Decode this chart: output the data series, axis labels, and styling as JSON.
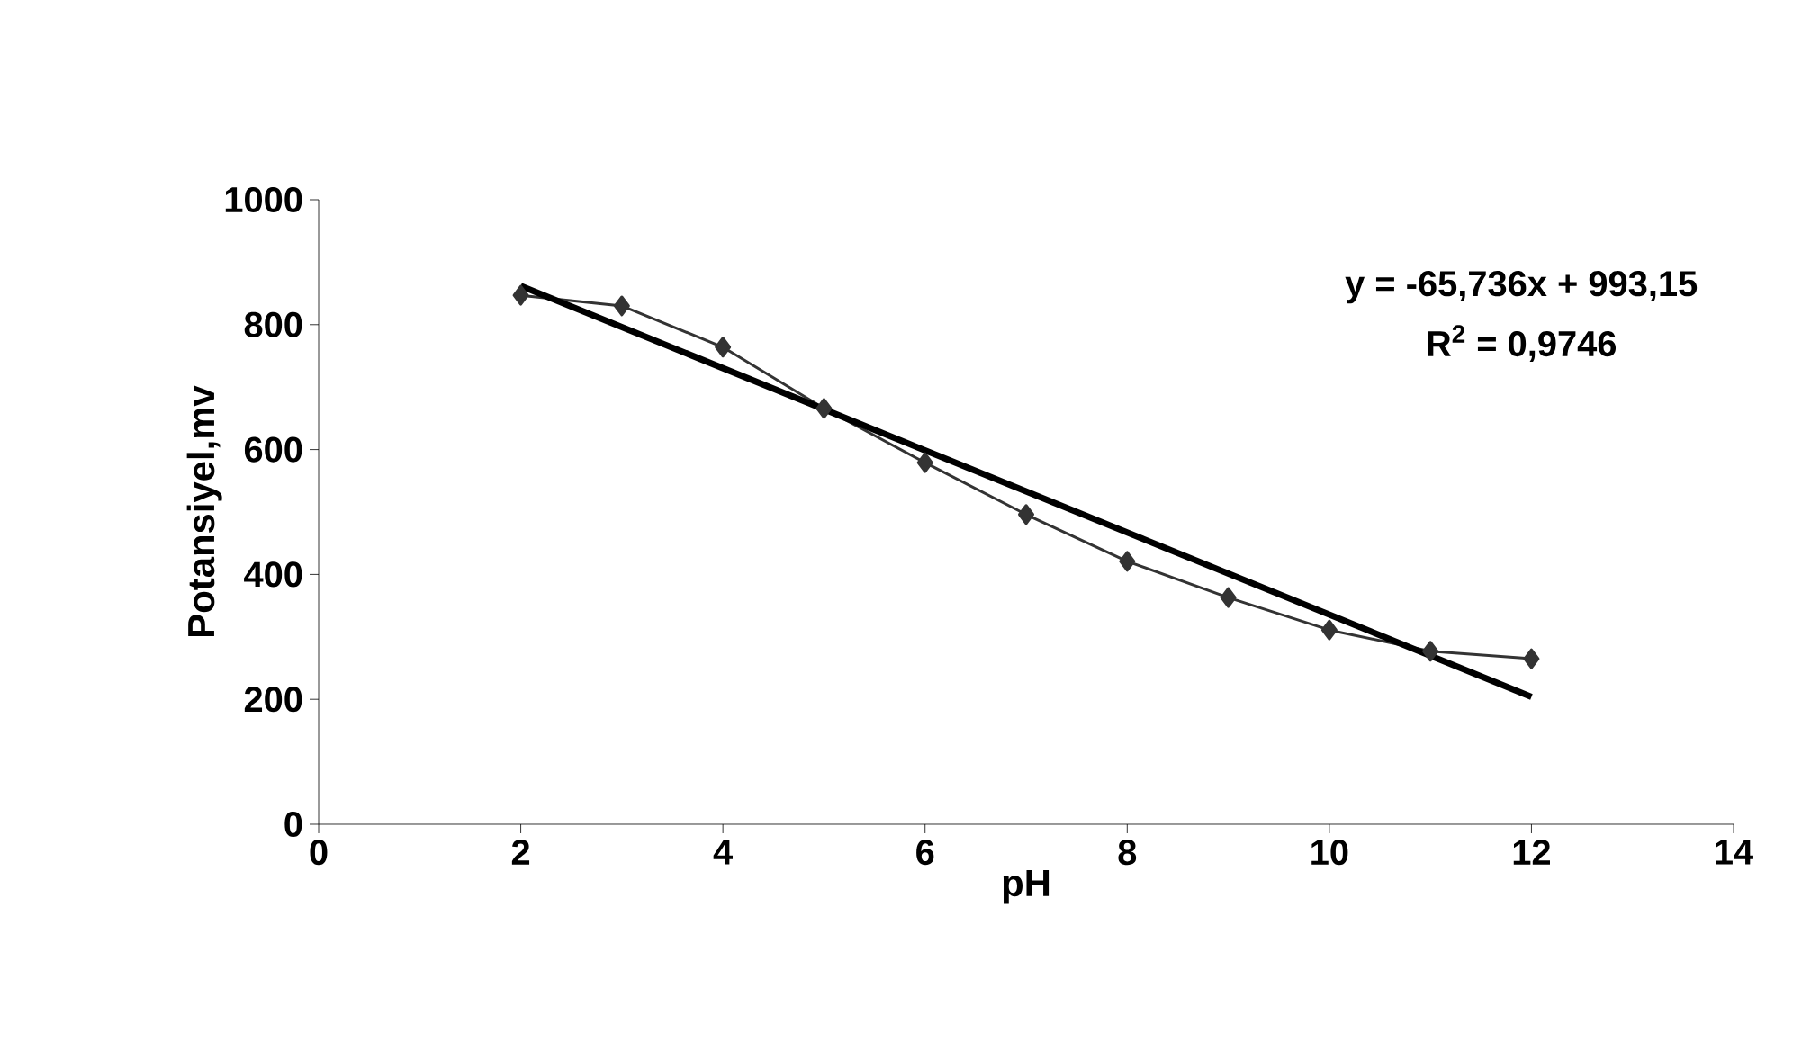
{
  "chart_data": {
    "type": "line",
    "xlabel": "pH",
    "ylabel": "Potansiyel,mv",
    "series": [
      {
        "color": "#333333",
        "marker": "diamond",
        "x": [
          2,
          3,
          4,
          5,
          6,
          7,
          8,
          9,
          10,
          11,
          12
        ],
        "values": [
          847,
          830,
          764,
          666,
          579,
          496,
          421,
          363,
          311,
          277,
          265
        ]
      },
      {
        "color": "#000000",
        "marker": "none",
        "x": [
          2,
          12
        ],
        "values": [
          862,
          204
        ]
      }
    ],
    "xlim": [
      0,
      14
    ],
    "xticks": [
      0,
      2,
      4,
      6,
      8,
      10,
      12,
      14
    ],
    "ylim": [
      0,
      1000
    ],
    "yticks": [
      0,
      200,
      400,
      600,
      800,
      1000
    ],
    "grid": false,
    "annotations": [
      "y = -65,736x + 993,15",
      "R$^{2}$ = 0,9746"
    ]
  }
}
